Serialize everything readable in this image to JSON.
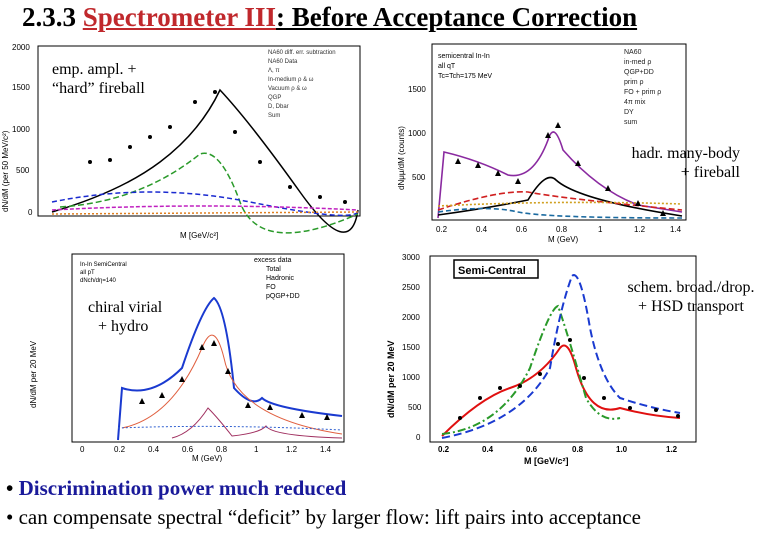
{
  "slide": {
    "title_prefix": "2.3.3 ",
    "title_highlight": "Spectrometer III",
    "title_suffix": ": Before Acceptance Correction"
  },
  "panels": {
    "p1": {
      "label_line1": "emp. ampl. +",
      "label_line2": "“hard” fireball",
      "xlabel": "M [GeV/c²]",
      "ylabel": "dN/dM (per 50 MeV/c²)",
      "yticks": [
        "2000",
        "1500",
        "1000",
        "500",
        "0"
      ],
      "legend": [
        "NA60 diff. err. subtraction",
        "NA60 Data",
        "Λ, π",
        "In-medium ρ & ω",
        "Vacuum ρ & ω",
        "QGP",
        "D, Dbar",
        "Sum"
      ]
    },
    "p2": {
      "label_line1": "hadr. many-body",
      "label_line2": "+ fireball",
      "info": [
        "semicentral In-In",
        "all qT",
        "Tc=Tch=175 MeV"
      ],
      "xticks": [
        "0.2",
        "0.4",
        "0.6",
        "0.8",
        "1",
        "1.2",
        "1.4"
      ],
      "xlabel": "M (GeV)",
      "ylabel": "dNμμ/dM (counts)",
      "yticks": [
        "1500",
        "1000",
        "500"
      ],
      "legend": [
        "NA60",
        "in-med ρ",
        "QGP+DD",
        "prim ρ",
        "FO + prim ρ",
        "4π mix",
        "DY",
        "sum"
      ]
    },
    "p3": {
      "label_line1": "chiral virial",
      "label_line2": "+ hydro",
      "info": [
        "In-In SemiCentral",
        "all pT",
        "dNch/dη=140"
      ],
      "xticks": [
        "0",
        "0.2",
        "0.4",
        "0.6",
        "0.8",
        "1",
        "1.2",
        "1.4"
      ],
      "xlabel": "M (GeV)",
      "ylabel": "dN/dM per 20 MeV",
      "legend": [
        "excess data",
        "Total",
        "Hadronic",
        "FO",
        "pQGP+DD"
      ]
    },
    "p4": {
      "badge": "Semi-Central",
      "label_line1": "schem. broad./drop.",
      "label_line2": "+ HSD transport",
      "xticks": [
        "0.2",
        "0.4",
        "0.6",
        "0.8",
        "1.0",
        "1.2"
      ],
      "yticks": [
        "3000",
        "2500",
        "2000",
        "1500",
        "1000",
        "500",
        "0"
      ],
      "xlabel": "M [GeV/c²]",
      "ylabel": "dN/dM per 20 MeV"
    }
  },
  "bullets": [
    {
      "bullet": "•",
      "text": "Discrimination power much reduced"
    },
    {
      "bullet": "•",
      "text": "can compensate spectral “deficit” by larger flow: lift pairs into acceptance"
    }
  ]
}
